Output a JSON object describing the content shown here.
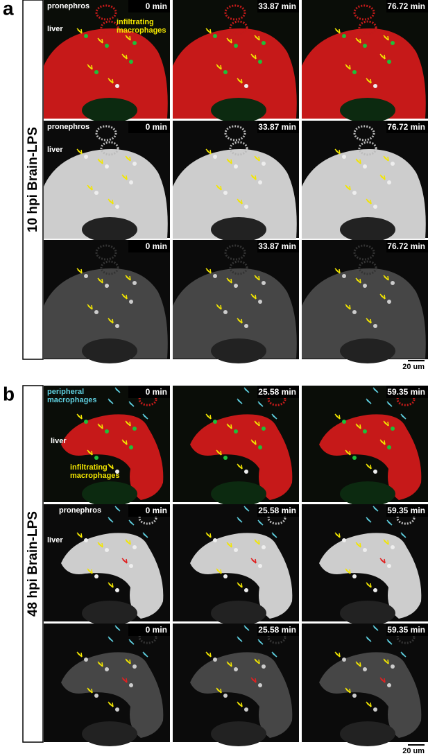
{
  "panels": [
    {
      "label": "a",
      "side_label": "10 hpi Brain-LPS",
      "scale_bar": "20 um",
      "rows": [
        {
          "times": [
            "0 min",
            "33.87 min",
            "76.72 min"
          ],
          "annotations": [
            {
              "lines": [
                "pronephros"
              ]
            },
            {
              "lines": [
                "liver"
              ]
            },
            {
              "lines": [
                "infiltrating",
                "macrophages"
              ]
            }
          ]
        },
        {
          "times": [
            "0 min",
            "33.87 min",
            "76.72 min"
          ],
          "annotations": [
            {
              "lines": [
                "pronephros"
              ]
            },
            {
              "lines": [
                "liver"
              ]
            }
          ]
        },
        {
          "times": [
            "0 min",
            "33.87 min",
            "76.72 min"
          ],
          "annotations": []
        }
      ]
    },
    {
      "label": "b",
      "side_label": "48 hpi Brain-LPS",
      "scale_bar": "20 um",
      "rows": [
        {
          "times": [
            "0 min",
            "25.58 min",
            "59.35 min"
          ],
          "annotations": [
            {
              "lines": [
                "peripheral",
                "macrophages"
              ]
            },
            {
              "lines": [
                "liver"
              ]
            },
            {
              "lines": [
                "infiltrating",
                "macrophages"
              ]
            }
          ]
        },
        {
          "times": [
            "0 min",
            "25.58 min",
            "59.35 min"
          ],
          "annotations": [
            {
              "lines": [
                "pronephros"
              ]
            },
            {
              "lines": [
                "liver"
              ]
            }
          ]
        },
        {
          "times": [
            "0 min",
            "25.58 min",
            "59.35 min"
          ],
          "annotations": []
        }
      ]
    }
  ]
}
